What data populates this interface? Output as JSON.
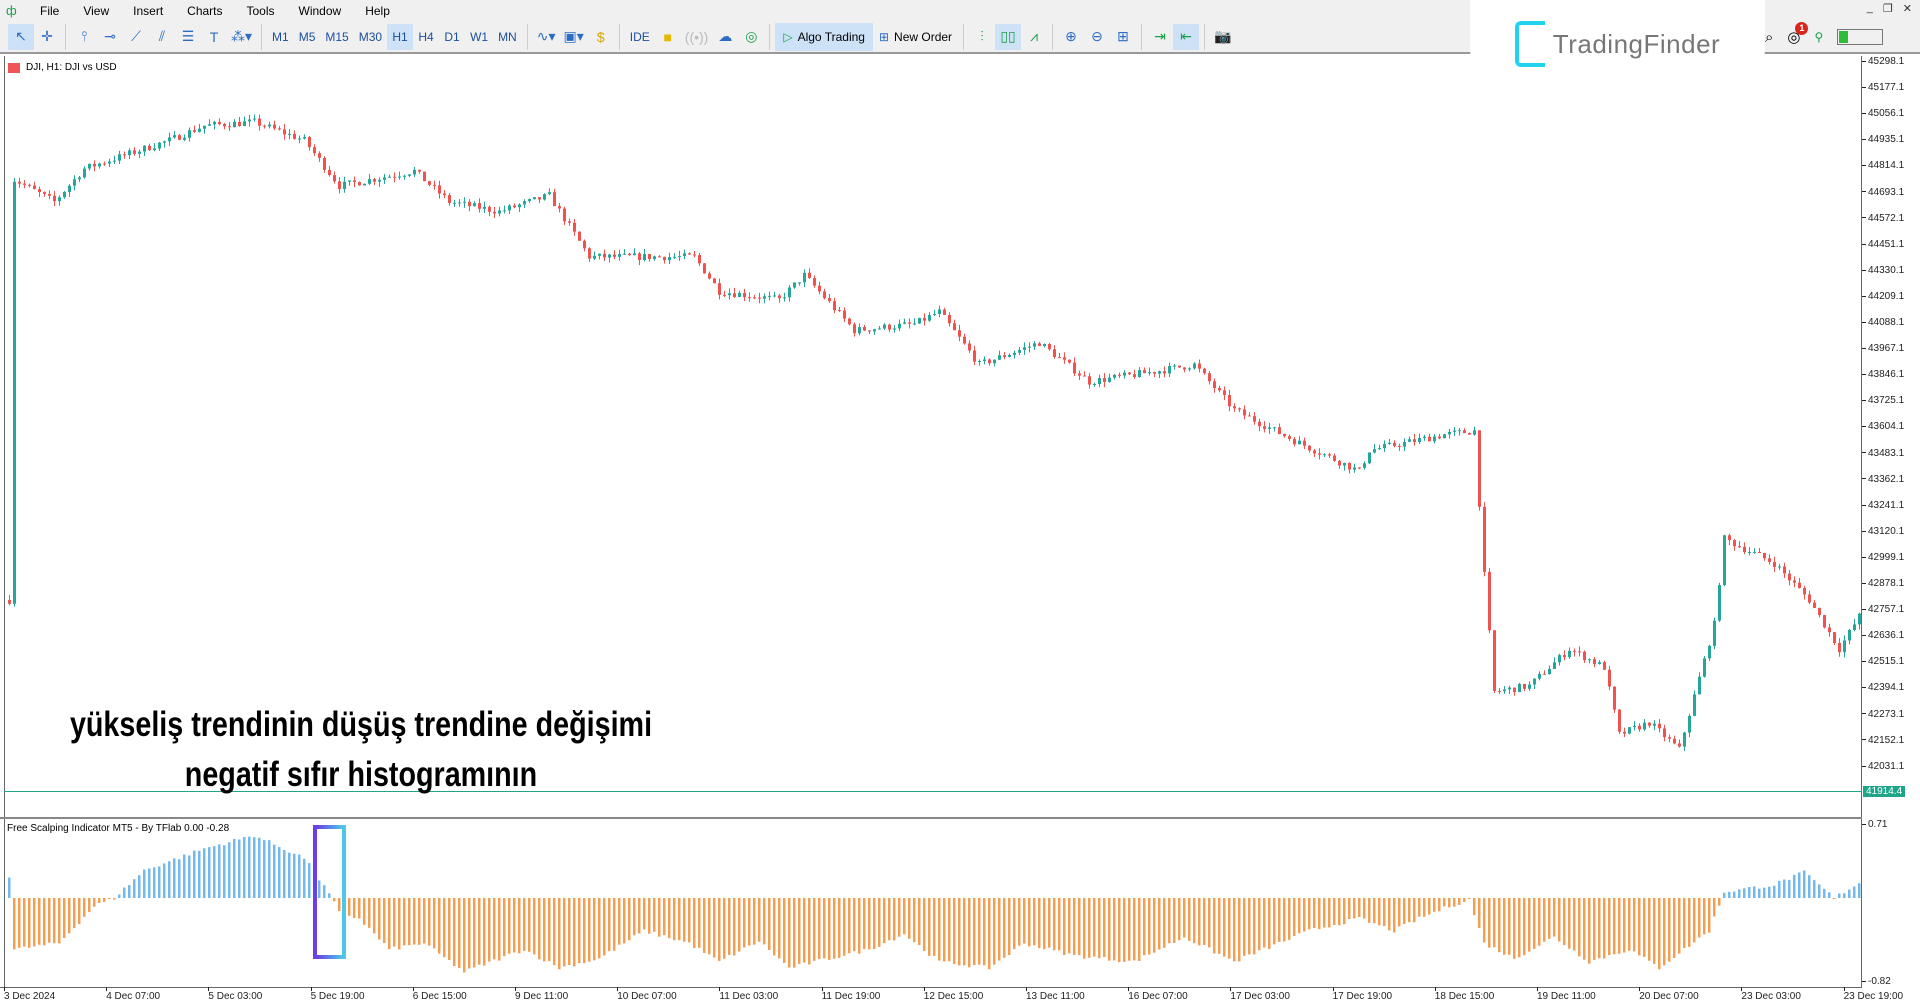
{
  "menu": {
    "items": [
      "File",
      "View",
      "Insert",
      "Charts",
      "Tools",
      "Window",
      "Help"
    ]
  },
  "toolbar": {
    "timeframes": [
      "M1",
      "M5",
      "M15",
      "M30",
      "H1",
      "H4",
      "D1",
      "W1",
      "MN"
    ],
    "active_timeframe": "H1",
    "ide_label": "IDE",
    "algo_trading_label": "Algo Trading",
    "new_order_label": "New Order"
  },
  "brand": {
    "name": "TradingFinder",
    "notifications": "1"
  },
  "chart": {
    "label": "DJI, H1:  DJI vs USD",
    "current_price": "41914.4",
    "bull_color": "#26a69a",
    "bear_color": "#ef5350",
    "price_ticks": [
      "45298.1",
      "45177.1",
      "45056.1",
      "44935.1",
      "44814.1",
      "44693.1",
      "44572.1",
      "44451.1",
      "44330.1",
      "44209.1",
      "44088.1",
      "43967.1",
      "43846.1",
      "43725.1",
      "43604.1",
      "43483.1",
      "43362.1",
      "43241.1",
      "43120.1",
      "42999.1",
      "42878.1",
      "42757.1",
      "42636.1",
      "42515.1",
      "42394.1",
      "42273.1",
      "42152.1",
      "42031.1"
    ],
    "price_path": [
      [
        1,
        44753
      ],
      [
        9,
        44650
      ],
      [
        15,
        44804
      ],
      [
        32,
        44935
      ],
      [
        39,
        45003
      ],
      [
        49,
        45020
      ],
      [
        59,
        44935
      ],
      [
        66,
        44724
      ],
      [
        81,
        44793
      ],
      [
        88,
        44650
      ],
      [
        98,
        44605
      ],
      [
        108,
        44679
      ],
      [
        116,
        44395
      ],
      [
        127,
        44395
      ],
      [
        137,
        44395
      ],
      [
        142,
        44236
      ],
      [
        154,
        44196
      ],
      [
        159,
        44310
      ],
      [
        169,
        44054
      ],
      [
        181,
        44083
      ],
      [
        186,
        44140
      ],
      [
        194,
        43895
      ],
      [
        206,
        43997
      ],
      [
        216,
        43816
      ],
      [
        230,
        43867
      ],
      [
        237,
        43895
      ],
      [
        245,
        43685
      ],
      [
        257,
        43543
      ],
      [
        270,
        43401
      ],
      [
        272,
        43498
      ],
      [
        287,
        43571
      ],
      [
        293,
        43588
      ],
      [
        295,
        42918
      ],
      [
        297,
        42378
      ],
      [
        304,
        42406
      ],
      [
        312,
        42577
      ],
      [
        319,
        42492
      ],
      [
        322,
        42180
      ],
      [
        328,
        42236
      ],
      [
        334,
        42111
      ],
      [
        341,
        42691
      ],
      [
        343,
        43088
      ],
      [
        353,
        42974
      ],
      [
        360,
        42804
      ],
      [
        366,
        42577
      ],
      [
        372,
        42804
      ]
    ]
  },
  "annotation": {
    "line1": "yükseliş trendinin düşüş trendine değişimi",
    "line2": "negatif sıfır histogramının"
  },
  "indicator": {
    "label": "Free Scalping Indicator MT5 - By TFlab 0.00 -0.28",
    "axis_max": "0.71",
    "axis_min": "-0.82",
    "positive_color": "#74b9ea",
    "negative_color": "#f0a055",
    "path": [
      [
        1,
        -0.5
      ],
      [
        10,
        -0.44
      ],
      [
        17,
        -0.08
      ],
      [
        21,
        0
      ],
      [
        27,
        0.27
      ],
      [
        39,
        0.48
      ],
      [
        49,
        0.61
      ],
      [
        59,
        0.39
      ],
      [
        64,
        0.04
      ],
      [
        66,
        -0.14
      ],
      [
        70,
        -0.2
      ],
      [
        76,
        -0.5
      ],
      [
        83,
        -0.44
      ],
      [
        91,
        -0.72
      ],
      [
        103,
        -0.5
      ],
      [
        110,
        -0.68
      ],
      [
        118,
        -0.59
      ],
      [
        127,
        -0.32
      ],
      [
        136,
        -0.44
      ],
      [
        142,
        -0.62
      ],
      [
        150,
        -0.42
      ],
      [
        156,
        -0.68
      ],
      [
        172,
        -0.5
      ],
      [
        179,
        -0.35
      ],
      [
        186,
        -0.62
      ],
      [
        196,
        -0.68
      ],
      [
        203,
        -0.44
      ],
      [
        213,
        -0.56
      ],
      [
        225,
        -0.62
      ],
      [
        235,
        -0.38
      ],
      [
        245,
        -0.62
      ],
      [
        260,
        -0.32
      ],
      [
        270,
        -0.2
      ],
      [
        277,
        -0.32
      ],
      [
        282,
        -0.2
      ],
      [
        288,
        -0.08
      ],
      [
        292,
        -0.02
      ],
      [
        295,
        -0.44
      ],
      [
        301,
        -0.59
      ],
      [
        309,
        -0.38
      ],
      [
        316,
        -0.62
      ],
      [
        324,
        -0.5
      ],
      [
        330,
        -0.68
      ],
      [
        340,
        -0.32
      ],
      [
        343,
        0.06
      ],
      [
        353,
        0.13
      ],
      [
        359,
        0.25
      ],
      [
        365,
        0
      ],
      [
        372,
        0.21
      ]
    ]
  },
  "time_axis": [
    "3 Dec 2024",
    "4 Dec 07:00",
    "5 Dec 03:00",
    "5 Dec 19:00",
    "6 Dec 15:00",
    "9 Dec 11:00",
    "10 Dec 07:00",
    "11 Dec 03:00",
    "11 Dec 19:00",
    "12 Dec 15:00",
    "13 Dec 11:00",
    "16 Dec 07:00",
    "17 Dec 03:00",
    "17 Dec 19:00",
    "18 Dec 15:00",
    "19 Dec 11:00",
    "20 Dec 07:00",
    "23 Dec 03:00",
    "23 Dec 19:00"
  ]
}
